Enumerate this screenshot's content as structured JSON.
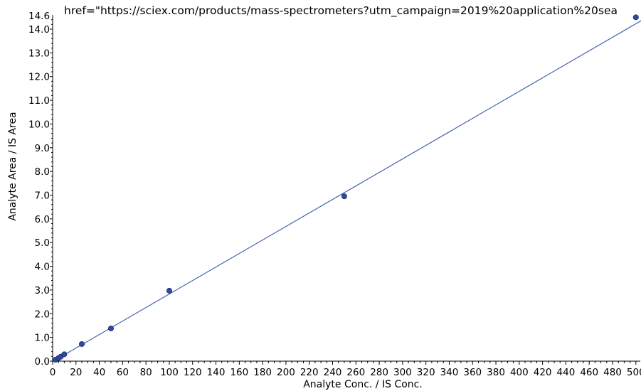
{
  "header_text": "href=\"https://sciex.com/products/mass-spectrometers?utm_campaign=2019%20application%20sea",
  "chart_data": {
    "type": "scatter",
    "xlabel": "Analyte Conc. / IS Conc.",
    "ylabel": "Analyte Area / IS Area",
    "xlim": [
      0,
      505
    ],
    "ylim": [
      0,
      14.6
    ],
    "x_ticks": [
      0,
      20,
      40,
      60,
      80,
      100,
      120,
      140,
      160,
      180,
      200,
      220,
      240,
      260,
      280,
      300,
      320,
      340,
      360,
      380,
      400,
      420,
      440,
      460,
      480,
      500
    ],
    "y_ticks": [
      0.0,
      1.0,
      2.0,
      3.0,
      4.0,
      5.0,
      6.0,
      7.0,
      8.0,
      9.0,
      10.0,
      11.0,
      12.0,
      13.0,
      14.0
    ],
    "y_tick_labels": [
      "0.0",
      "1.0",
      "2.0",
      "3.0",
      "4.0",
      "5.0",
      "6.0",
      "7.0",
      "8.0",
      "9.0",
      "10.0",
      "11.0",
      "12.0",
      "13.0",
      "14.0"
    ],
    "y_max_label": "14.6",
    "points": [
      {
        "x": 2.5,
        "y": 0.06
      },
      {
        "x": 5,
        "y": 0.13
      },
      {
        "x": 7,
        "y": 0.19
      },
      {
        "x": 10,
        "y": 0.29
      },
      {
        "x": 25,
        "y": 0.72
      },
      {
        "x": 50,
        "y": 1.38
      },
      {
        "x": 100,
        "y": 2.97
      },
      {
        "x": 250,
        "y": 6.95
      },
      {
        "x": 500,
        "y": 14.5
      }
    ],
    "fit_line": {
      "x": [
        0,
        505
      ],
      "y": [
        -0.02,
        14.37
      ]
    },
    "grid": false,
    "colors": {
      "marker": "#2f4aa0",
      "line": "#4a66b0",
      "axis": "#000000"
    }
  }
}
